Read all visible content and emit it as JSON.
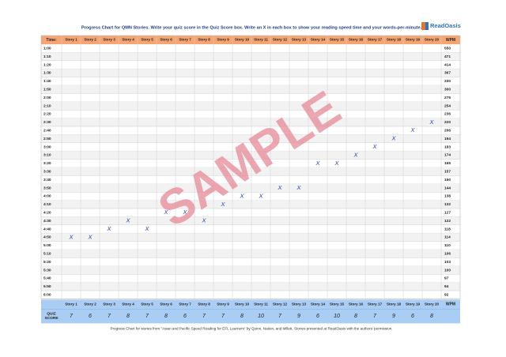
{
  "header": {
    "title": "Progress Chart for QMN Stories. Write your quiz score in the Quiz Score box. Write an X in each box to show your reading speed time and your words-per-minute.",
    "logo": "ReadOasis"
  },
  "table": {
    "time_header": "Time:",
    "wpm_header": "WPM",
    "quiz_header": "QUIZ SCORE",
    "stories": [
      "Story 1",
      "Story 2",
      "Story 3",
      "Story 4",
      "Story 5",
      "Story 6",
      "Story 7",
      "Story 8",
      "Story 9",
      "Story 10",
      "Story 11",
      "Story 12",
      "Story 13",
      "Story 14",
      "Story 15",
      "Story 16",
      "Story 17",
      "Story 18",
      "Story 19",
      "Story 20"
    ],
    "times": [
      "1:00",
      "1:10",
      "1:20",
      "1:30",
      "1:40",
      "1:50",
      "2:00",
      "2:10",
      "2:20",
      "2:30",
      "2:40",
      "2:50",
      "3:00",
      "3:10",
      "3:20",
      "3:30",
      "3:40",
      "3:50",
      "4:00",
      "4:10",
      "4:20",
      "4:30",
      "4:40",
      "4:50",
      "5:00",
      "5:10",
      "5:20",
      "5:30",
      "5:40",
      "5:50",
      "6:00"
    ],
    "wpm": [
      550,
      471,
      414,
      367,
      330,
      300,
      275,
      254,
      236,
      220,
      206,
      194,
      183,
      174,
      165,
      157,
      150,
      144,
      138,
      132,
      127,
      122,
      118,
      114,
      110,
      106,
      103,
      100,
      97,
      94,
      92
    ],
    "entries": [
      {
        "time": "4:50",
        "mark": "X"
      },
      {
        "time": "4:50",
        "mark": "X"
      },
      {
        "time": "4:40",
        "mark": "X"
      },
      {
        "time": "4:30",
        "mark": "X"
      },
      {
        "time": "4:40",
        "mark": "X"
      },
      {
        "time": "4:20",
        "mark": "X"
      },
      {
        "time": "4:20",
        "mark": "X"
      },
      {
        "time": "4:30",
        "mark": "X"
      },
      {
        "time": "4:10",
        "mark": "X"
      },
      {
        "time": "4:00",
        "mark": "X"
      },
      {
        "time": "4:00",
        "mark": "X"
      },
      {
        "time": "3:50",
        "mark": "X"
      },
      {
        "time": "3:50",
        "mark": "X"
      },
      {
        "time": "3:20",
        "mark": "X"
      },
      {
        "time": "3:20",
        "mark": "X"
      },
      {
        "time": "3:10",
        "mark": "X"
      },
      {
        "time": "3:00",
        "mark": "X"
      },
      {
        "time": "2:50",
        "mark": "X"
      },
      {
        "time": "2:40",
        "mark": "X"
      },
      {
        "time": "2:30",
        "mark": "X"
      }
    ],
    "quiz_scores": [
      7,
      6,
      7,
      8,
      7,
      8,
      6,
      7,
      7,
      8,
      10,
      7,
      9,
      6,
      10,
      8,
      7,
      9,
      6,
      8
    ]
  },
  "watermark": "SAMPLE",
  "footer": "Progress Chart for stories from \"Asian and Pacific Speed Reading for EFL Learners\" by Quinn, Nation, and Millett. Stories presented at ReadOasis with the authors' permission."
}
